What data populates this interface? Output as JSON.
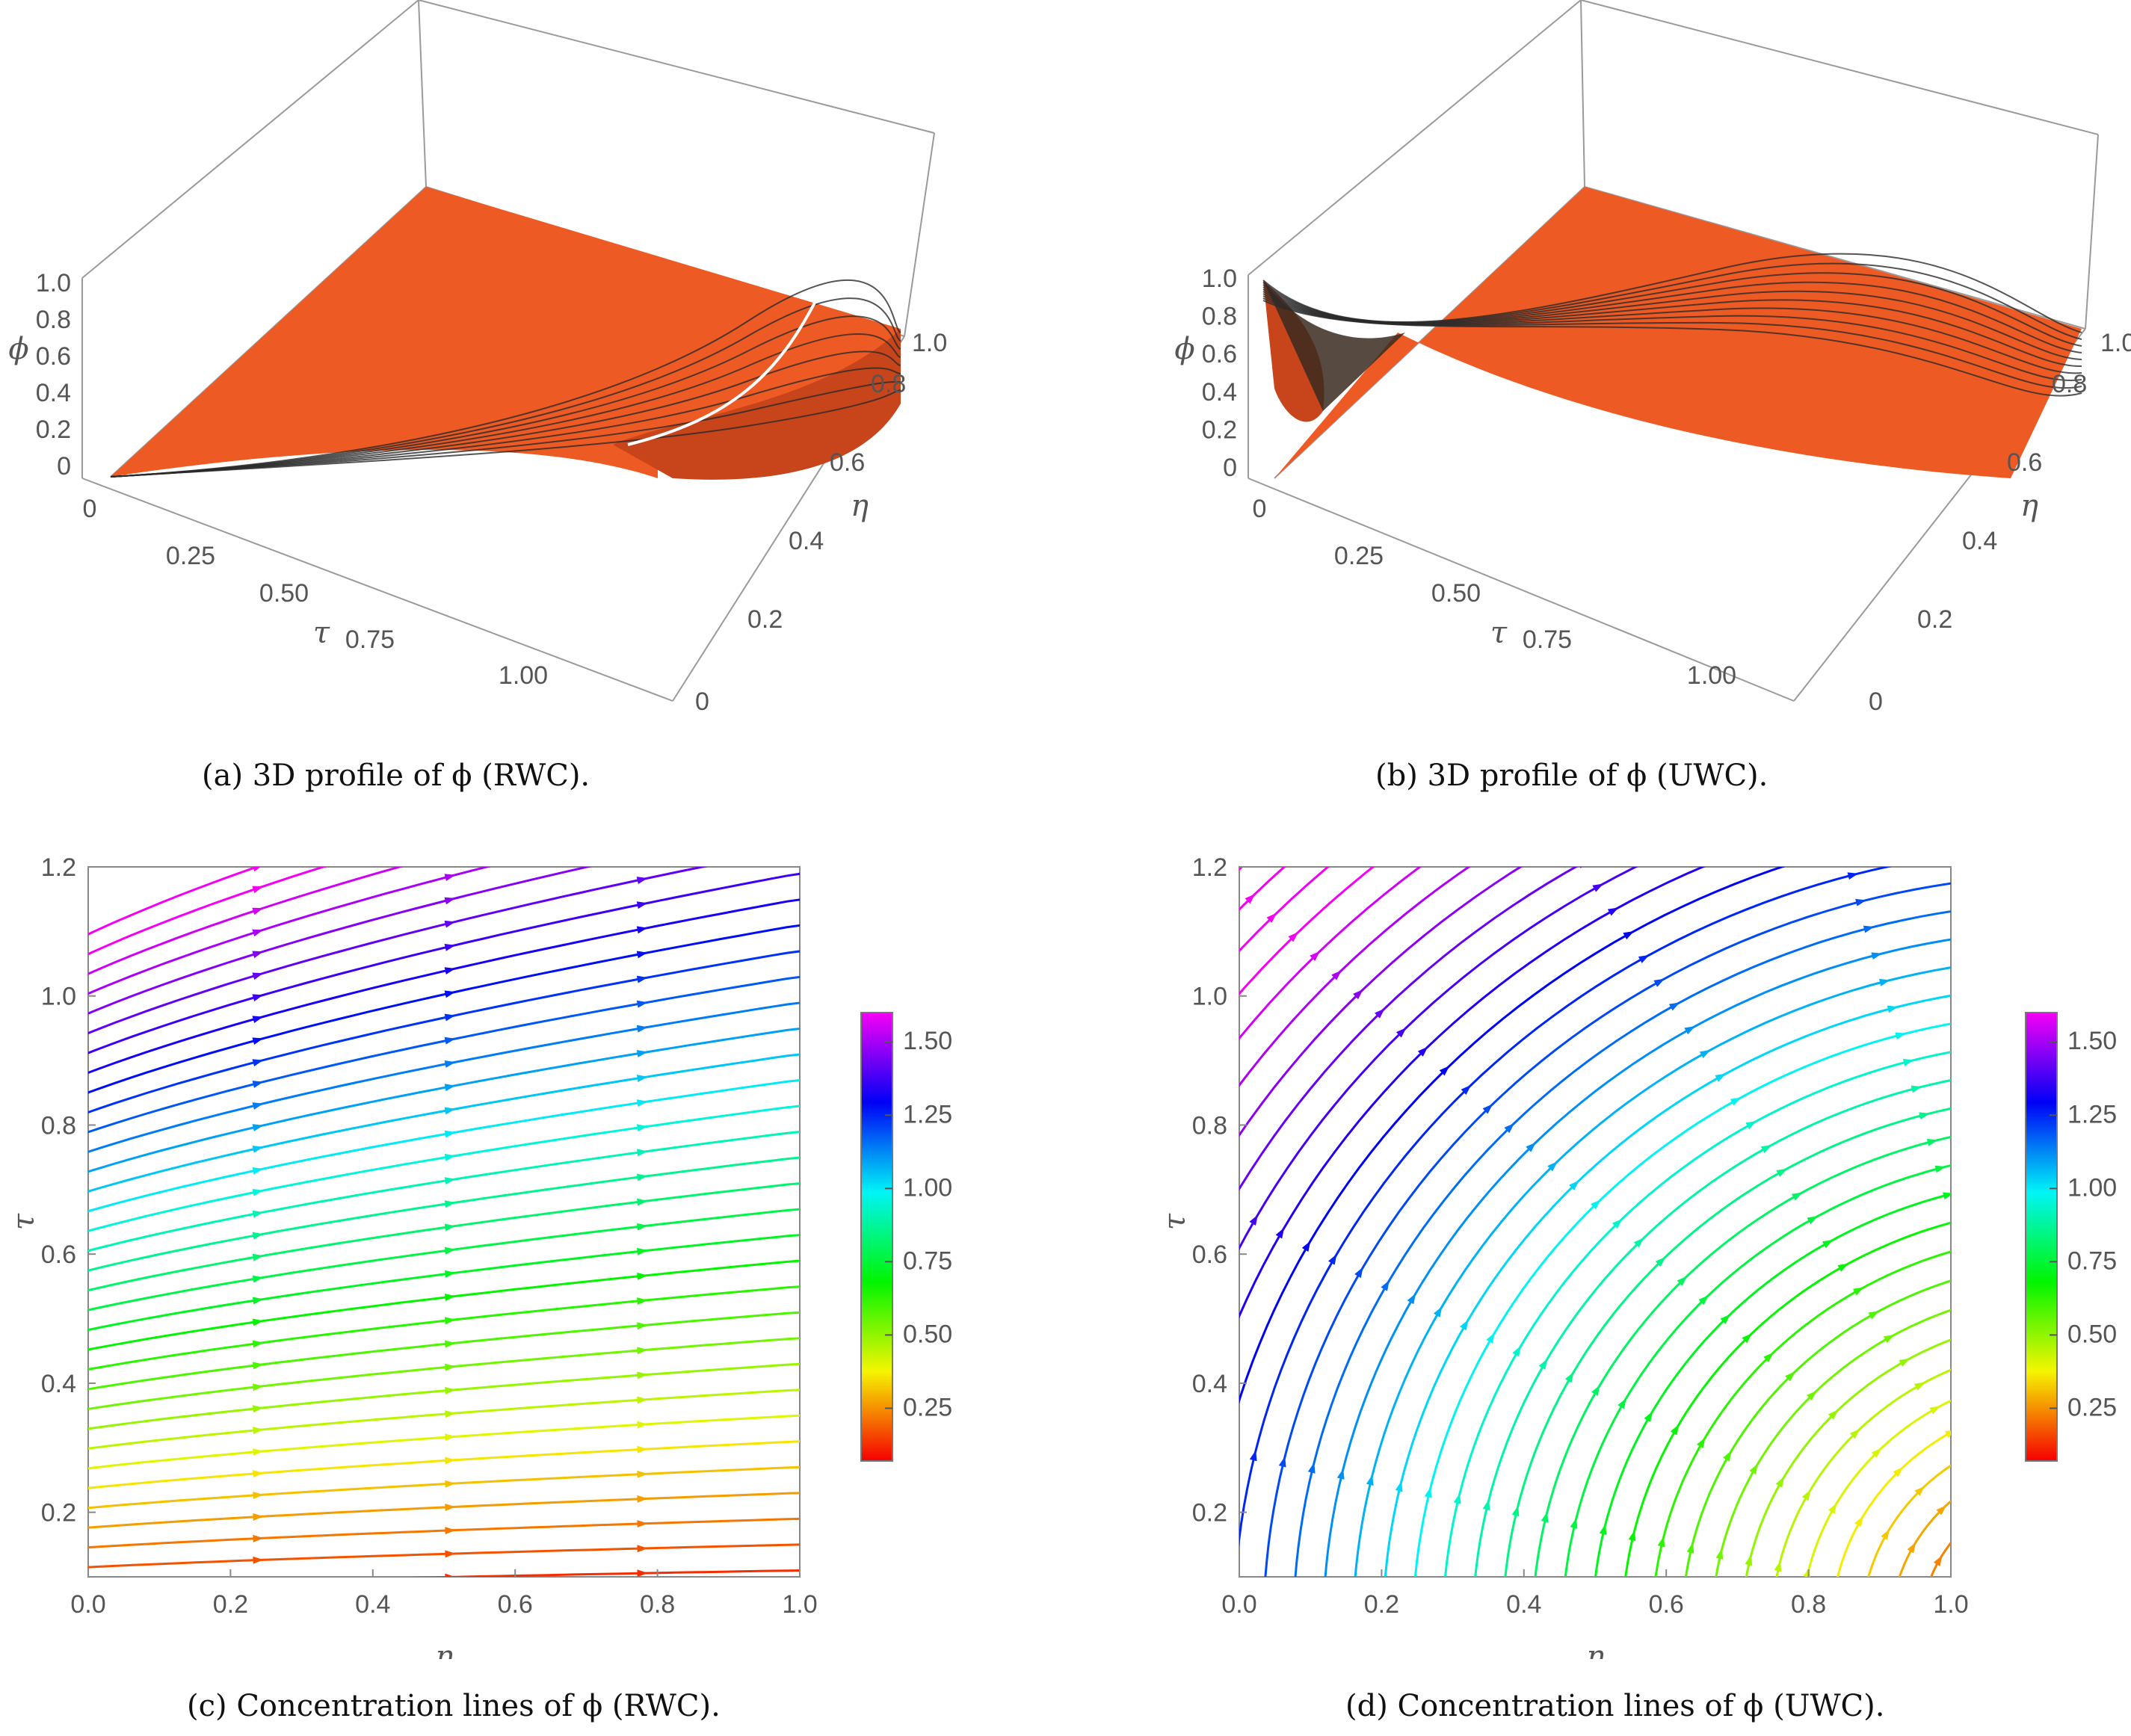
{
  "figures": {
    "a": {
      "caption": "(a) 3D profile of ϕ (RWC)."
    },
    "b": {
      "caption": "(b) 3D profile of ϕ (UWC)."
    },
    "c": {
      "caption": "(c) Concentration lines of ϕ (RWC)."
    },
    "d": {
      "caption": "(d) Concentration lines of ϕ (UWC)."
    }
  },
  "colors": {
    "surface": "#ee5a24",
    "surface_dark": "#c8441a",
    "box": "#9a9a9a",
    "mesh": "#2a2a2a"
  },
  "chart_data": [
    {
      "id": "a",
      "type": "surface3d",
      "title": "3D profile of ϕ (RWC)",
      "axes": {
        "phi": {
          "label": "ϕ",
          "ticks": [
            "0",
            "0.2",
            "0.4",
            "0.6",
            "0.8",
            "1.0"
          ],
          "range": [
            0,
            1.0
          ]
        },
        "tau": {
          "label": "τ",
          "ticks": [
            "0",
            "0.25",
            "0.50",
            "0.75",
            "1.00"
          ],
          "range": [
            0,
            1.2
          ]
        },
        "eta": {
          "label": "η",
          "ticks": [
            "0",
            "0.2",
            "0.4",
            "0.6",
            "0.8",
            "1.0"
          ],
          "range": [
            0,
            1.0
          ]
        }
      },
      "surface_color": "#ee5a24"
    },
    {
      "id": "b",
      "type": "surface3d",
      "title": "3D profile of ϕ (UWC)",
      "axes": {
        "phi": {
          "label": "ϕ",
          "ticks": [
            "0",
            "0.2",
            "0.4",
            "0.6",
            "0.8",
            "1.0"
          ],
          "range": [
            0,
            1.0
          ]
        },
        "tau": {
          "label": "τ",
          "ticks": [
            "0",
            "0.25",
            "0.50",
            "0.75",
            "1.00"
          ],
          "range": [
            0,
            1.2
          ]
        },
        "eta": {
          "label": "η",
          "ticks": [
            "0",
            "0.2",
            "0.4",
            "0.6",
            "0.8",
            "1.0"
          ],
          "range": [
            0,
            1.0
          ]
        }
      },
      "surface_color": "#ee5a24"
    },
    {
      "id": "c",
      "type": "streamplot",
      "title": "Concentration lines of ϕ (RWC)",
      "xlabel": "η",
      "ylabel": "τ",
      "xlim": [
        0.0,
        1.0
      ],
      "ylim": [
        0.1,
        1.2
      ],
      "xticks": [
        "0.0",
        "0.2",
        "0.4",
        "0.6",
        "0.8",
        "1.0"
      ],
      "yticks": [
        "0.2",
        "0.4",
        "0.6",
        "0.8",
        "1.0",
        "1.2"
      ],
      "mode": "rwc",
      "colorbar": {
        "range": [
          0.07,
          1.6
        ],
        "ticks": [
          "0.25",
          "0.50",
          "0.75",
          "1.00",
          "1.25",
          "1.50"
        ]
      }
    },
    {
      "id": "d",
      "type": "streamplot",
      "title": "Concentration lines of ϕ (UWC)",
      "xlabel": "η",
      "ylabel": "τ",
      "xlim": [
        0.0,
        1.0
      ],
      "ylim": [
        0.1,
        1.2
      ],
      "xticks": [
        "0.0",
        "0.2",
        "0.4",
        "0.6",
        "0.8",
        "1.0"
      ],
      "yticks": [
        "0.2",
        "0.4",
        "0.6",
        "0.8",
        "1.0",
        "1.2"
      ],
      "mode": "uwc",
      "colorbar": {
        "range": [
          0.07,
          1.6
        ],
        "ticks": [
          "0.25",
          "0.50",
          "0.75",
          "1.00",
          "1.25",
          "1.50"
        ]
      }
    }
  ]
}
